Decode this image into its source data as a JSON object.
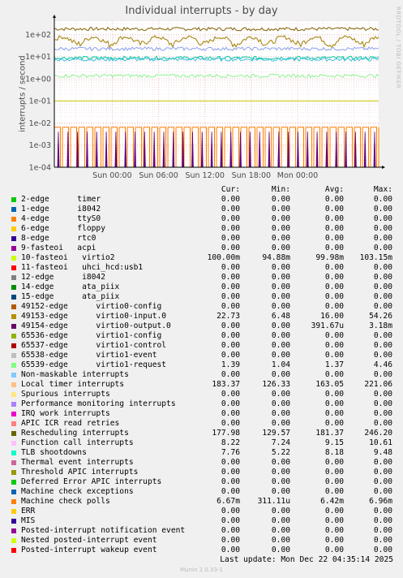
{
  "title": "Individual interrupts - by day",
  "side_label": "RRDTOOL / TOBI OETIKER",
  "ylabel": "interrupts / second",
  "headers": {
    "cur": "Cur:",
    "min": "Min:",
    "avg": "Avg:",
    "max": "Max:"
  },
  "footer": "Last update:  Mon Dec 22 04:35:14 2025",
  "version": "Munin 2.0.33-1",
  "chart_data": {
    "type": "line",
    "title": "Individual interrupts - by day",
    "ylabel": "interrupts / second",
    "yscale": "log",
    "ylim": [
      0.0001,
      400
    ],
    "y_ticks": [
      "1e+02",
      "1e+01",
      "1e+00",
      "1e-01",
      "1e-02",
      "1e-03",
      "1e-04"
    ],
    "x_ticks": [
      "Sun 00:00",
      "Sun 06:00",
      "Sun 12:00",
      "Sun 18:00",
      "Mon 00:00"
    ],
    "grid": true,
    "series": [
      {
        "name": "Rescheduling interrupts",
        "color": "#806000",
        "level": 177.98,
        "kind": "noisy"
      },
      {
        "name": "Local timer interrupts",
        "color": "#a08000",
        "level": 150,
        "kind": "wavy"
      },
      {
        "name": "Function call interrupts",
        "color": "#00c8a0",
        "level": 8.8,
        "kind": "noisy"
      },
      {
        "name": "TLB shootdowns",
        "color": "#40c0e0",
        "level": 7.5,
        "kind": "noisy"
      },
      {
        "name": "49153-edge virtio0-input.0",
        "color": "#88a0f0",
        "level": 22.73,
        "kind": "noisy"
      },
      {
        "name": "65539-edge virtio1-request",
        "color": "#90f090",
        "level": 1.37,
        "kind": "noisy"
      },
      {
        "name": "10-fasteoi virtio2",
        "color": "#c8c800",
        "level": 0.1,
        "kind": "flat"
      },
      {
        "name": "Machine check polls",
        "color": "#ff8000",
        "level": 0.0064,
        "kind": "pulse"
      },
      {
        "name": "49154-edge virtio0-output.0",
        "color": "#60007f",
        "level": 0.0004,
        "kind": "spike"
      }
    ]
  },
  "legend": [
    {
      "color": "#00cc00",
      "label": "2-edge      timer",
      "cur": "0.00",
      "min": "0.00",
      "avg": "0.00",
      "max": "0.00"
    },
    {
      "color": "#0066b3",
      "label": "1-edge      i8042",
      "cur": "0.00",
      "min": "0.00",
      "avg": "0.00",
      "max": "0.00"
    },
    {
      "color": "#ff8000",
      "label": "4-edge      ttyS0",
      "cur": "0.00",
      "min": "0.00",
      "avg": "0.00",
      "max": "0.00"
    },
    {
      "color": "#ffcc00",
      "label": "6-edge      floppy",
      "cur": "0.00",
      "min": "0.00",
      "avg": "0.00",
      "max": "0.00"
    },
    {
      "color": "#330099",
      "label": "8-edge      rtc0",
      "cur": "0.00",
      "min": "0.00",
      "avg": "0.00",
      "max": "0.00"
    },
    {
      "color": "#990099",
      "label": "9-fasteoi   acpi",
      "cur": "0.00",
      "min": "0.00",
      "avg": "0.00",
      "max": "0.00"
    },
    {
      "color": "#ccff00",
      "label": "10-fasteoi   virtio2",
      "cur": "100.00m",
      "min": "94.88m",
      "avg": "99.98m",
      "max": "103.15m"
    },
    {
      "color": "#ff0000",
      "label": "11-fasteoi   uhci_hcd:usb1",
      "cur": "0.00",
      "min": "0.00",
      "avg": "0.00",
      "max": "0.00"
    },
    {
      "color": "#808080",
      "label": "12-edge      i8042",
      "cur": "0.00",
      "min": "0.00",
      "avg": "0.00",
      "max": "0.00"
    },
    {
      "color": "#008f00",
      "label": "14-edge      ata_piix",
      "cur": "0.00",
      "min": "0.00",
      "avg": "0.00",
      "max": "0.00"
    },
    {
      "color": "#00487d",
      "label": "15-edge      ata_piix",
      "cur": "0.00",
      "min": "0.00",
      "avg": "0.00",
      "max": "0.00"
    },
    {
      "color": "#b35a00",
      "label": "49152-edge      virtio0-config",
      "cur": "0.00",
      "min": "0.00",
      "avg": "0.00",
      "max": "0.00"
    },
    {
      "color": "#b38f00",
      "label": "49153-edge      virtio0-input.0",
      "cur": "22.73",
      "min": "6.48",
      "avg": "16.00",
      "max": "54.26"
    },
    {
      "color": "#6b006b",
      "label": "49154-edge      virtio0-output.0",
      "cur": "0.00",
      "min": "0.00",
      "avg": "391.67u",
      "max": "3.18m"
    },
    {
      "color": "#8fb300",
      "label": "65536-edge      virtio1-config",
      "cur": "0.00",
      "min": "0.00",
      "avg": "0.00",
      "max": "0.00"
    },
    {
      "color": "#b30000",
      "label": "65537-edge      virtio1-control",
      "cur": "0.00",
      "min": "0.00",
      "avg": "0.00",
      "max": "0.00"
    },
    {
      "color": "#bebebe",
      "label": "65538-edge      virtio1-event",
      "cur": "0.00",
      "min": "0.00",
      "avg": "0.00",
      "max": "0.00"
    },
    {
      "color": "#80ff80",
      "label": "65539-edge      virtio1-request",
      "cur": "1.39",
      "min": "1.04",
      "avg": "1.37",
      "max": "4.46"
    },
    {
      "color": "#80c9ff",
      "label": "Non-maskable interrupts",
      "cur": "0.00",
      "min": "0.00",
      "avg": "0.00",
      "max": "0.00"
    },
    {
      "color": "#ffc080",
      "label": "Local timer interrupts",
      "cur": "183.37",
      "min": "126.33",
      "avg": "163.05",
      "max": "221.06"
    },
    {
      "color": "#ffe680",
      "label": "Spurious interrupts",
      "cur": "0.00",
      "min": "0.00",
      "avg": "0.00",
      "max": "0.00"
    },
    {
      "color": "#aa80ff",
      "label": "Performance monitoring interrupts",
      "cur": "0.00",
      "min": "0.00",
      "avg": "0.00",
      "max": "0.00"
    },
    {
      "color": "#ee00cc",
      "label": "IRQ work interrupts",
      "cur": "0.00",
      "min": "0.00",
      "avg": "0.00",
      "max": "0.00"
    },
    {
      "color": "#ff8080",
      "label": "APIC ICR read retries",
      "cur": "0.00",
      "min": "0.00",
      "avg": "0.00",
      "max": "0.00"
    },
    {
      "color": "#666600",
      "label": "Rescheduling interrupts",
      "cur": "177.98",
      "min": "129.57",
      "avg": "181.37",
      "max": "246.20"
    },
    {
      "color": "#ffbfff",
      "label": "Function call interrupts",
      "cur": "8.22",
      "min": "7.24",
      "avg": "9.15",
      "max": "10.61"
    },
    {
      "color": "#00ffcc",
      "label": "TLB shootdowns",
      "cur": "7.76",
      "min": "5.22",
      "avg": "8.18",
      "max": "9.48"
    },
    {
      "color": "#cc6699",
      "label": "Thermal event interrupts",
      "cur": "0.00",
      "min": "0.00",
      "avg": "0.00",
      "max": "0.00"
    },
    {
      "color": "#999900",
      "label": "Threshold APIC interrupts",
      "cur": "0.00",
      "min": "0.00",
      "avg": "0.00",
      "max": "0.00"
    },
    {
      "color": "#00cc00",
      "label": "Deferred Error APIC interrupts",
      "cur": "0.00",
      "min": "0.00",
      "avg": "0.00",
      "max": "0.00"
    },
    {
      "color": "#0066b3",
      "label": "Machine check exceptions",
      "cur": "0.00",
      "min": "0.00",
      "avg": "0.00",
      "max": "0.00"
    },
    {
      "color": "#ff8000",
      "label": "Machine check polls",
      "cur": "6.67m",
      "min": "311.11u",
      "avg": "6.42m",
      "max": "6.96m"
    },
    {
      "color": "#ffcc00",
      "label": "ERR",
      "cur": "0.00",
      "min": "0.00",
      "avg": "0.00",
      "max": "0.00"
    },
    {
      "color": "#330099",
      "label": "MIS",
      "cur": "0.00",
      "min": "0.00",
      "avg": "0.00",
      "max": "0.00"
    },
    {
      "color": "#990099",
      "label": "Posted-interrupt notification event",
      "cur": "0.00",
      "min": "0.00",
      "avg": "0.00",
      "max": "0.00"
    },
    {
      "color": "#ccff00",
      "label": "Nested posted-interrupt event",
      "cur": "0.00",
      "min": "0.00",
      "avg": "0.00",
      "max": "0.00"
    },
    {
      "color": "#ff0000",
      "label": "Posted-interrupt wakeup event",
      "cur": "0.00",
      "min": "0.00",
      "avg": "0.00",
      "max": "0.00"
    }
  ]
}
